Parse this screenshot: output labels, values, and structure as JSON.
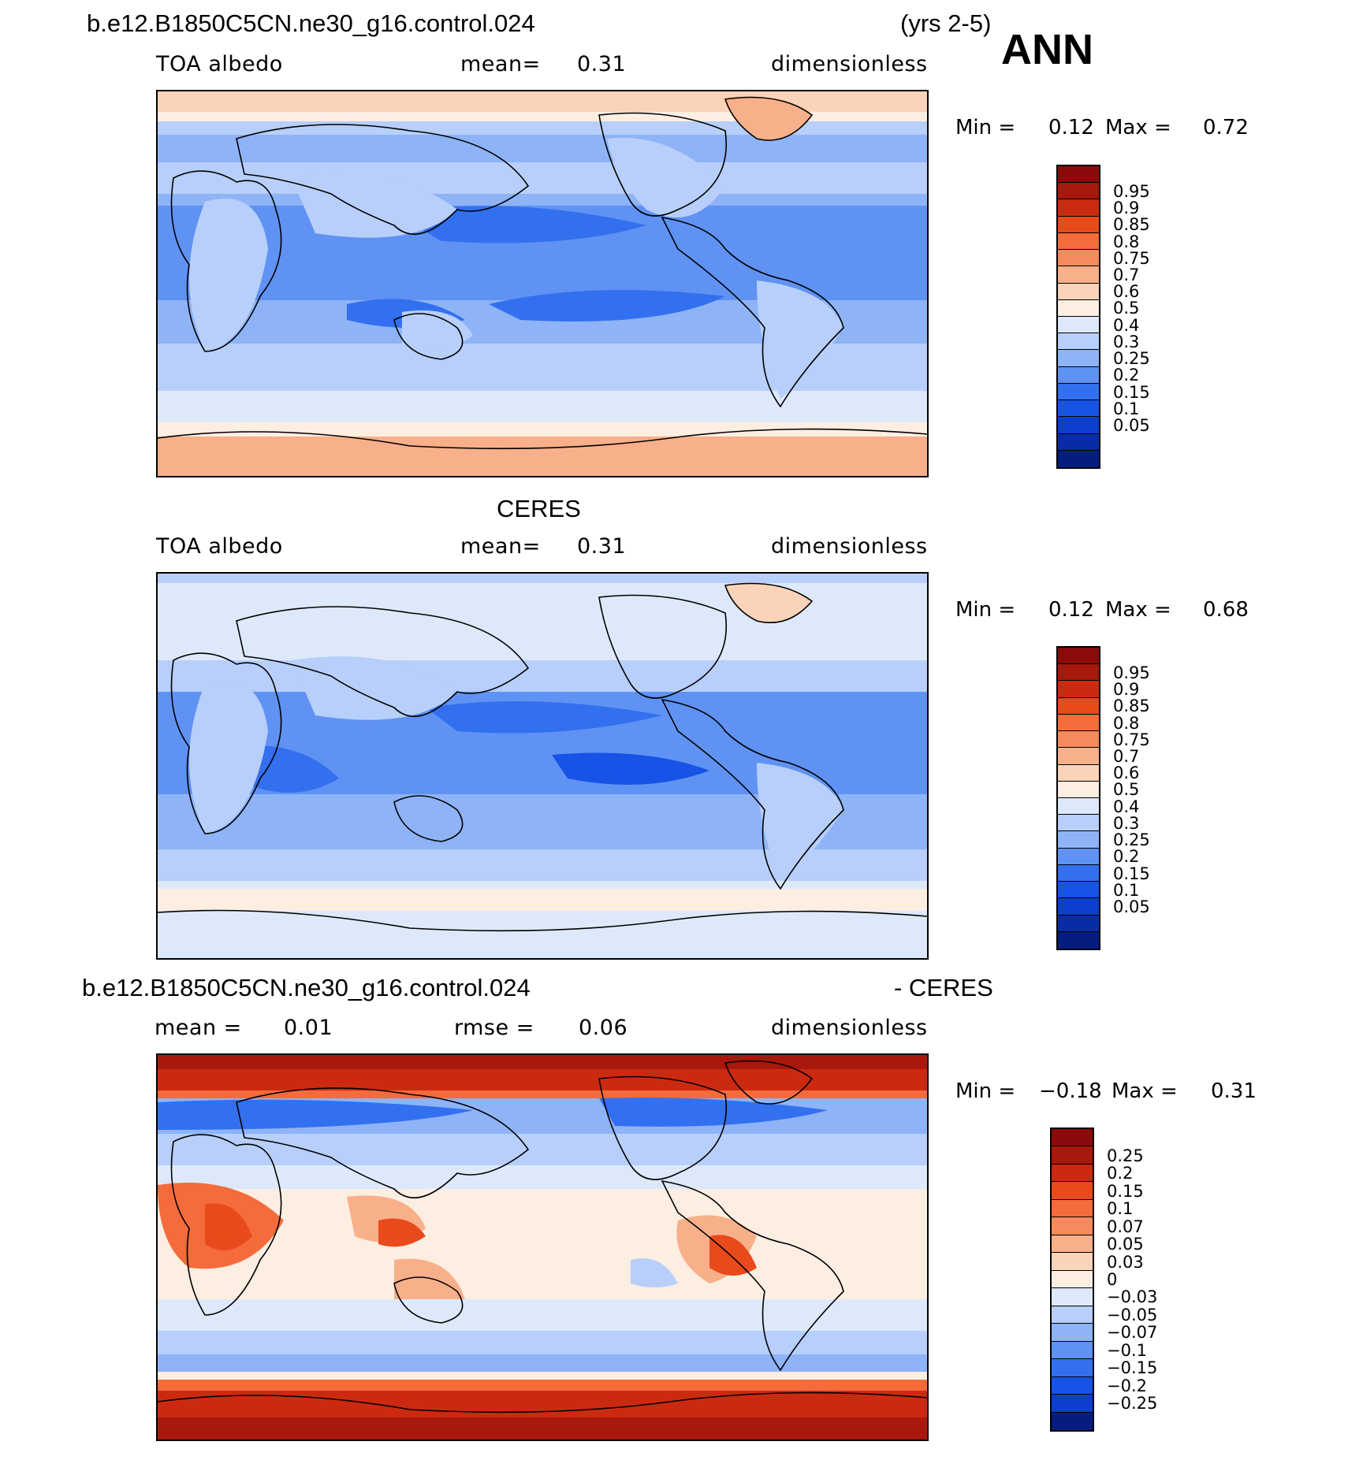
{
  "header": {
    "case_name": "b.e12.B1850C5CN.ne30_g16.control.024",
    "years": "(yrs 2-5)",
    "season": "ANN"
  },
  "panels": [
    {
      "id": "model",
      "title": "",
      "variable": "TOA albedo",
      "stat1_label": "mean=",
      "stat1_value": "0.31",
      "stat2_label": "",
      "stat2_value": "",
      "units": "dimensionless",
      "min_label": "Min =",
      "min_value": "0.12",
      "max_label": "Max =",
      "max_value": "0.72"
    },
    {
      "id": "obs",
      "title": "CERES",
      "variable": "TOA albedo",
      "stat1_label": "mean=",
      "stat1_value": "0.31",
      "stat2_label": "",
      "stat2_value": "",
      "units": "dimensionless",
      "min_label": "Min =",
      "min_value": "0.12",
      "max_label": "Max =",
      "max_value": "0.68"
    },
    {
      "id": "diff",
      "title": "b.e12.B1850C5CN.ne30_g16.control.024",
      "title_right": "- CERES",
      "variable": "",
      "stat1_label": "mean =",
      "stat1_value": "0.01",
      "stat2_label": "rmse =",
      "stat2_value": "0.06",
      "units": "dimensionless",
      "min_label": "Min =",
      "min_value": "−0.18",
      "max_label": "Max =",
      "max_value": "0.31"
    }
  ],
  "legends": {
    "abs": {
      "labels": [
        "0.95",
        "0.9",
        "0.85",
        "0.8",
        "0.75",
        "0.7",
        "0.6",
        "0.5",
        "0.4",
        "0.3",
        "0.25",
        "0.2",
        "0.15",
        "0.1",
        "0.05"
      ],
      "colors": [
        "#8b0a0a",
        "#a8180c",
        "#cc2a10",
        "#e84a1c",
        "#f56b3c",
        "#f78a5c",
        "#f8b08a",
        "#fad3b8",
        "#fdeee2",
        "#dde9fb",
        "#b7cffa",
        "#8eb3f7",
        "#5f92f3",
        "#3370ef",
        "#1653e6",
        "#0d3fcf",
        "#0a2ba8",
        "#061d80"
      ]
    },
    "diff": {
      "labels": [
        "0.25",
        "0.2",
        "0.15",
        "0.1",
        "0.07",
        "0.05",
        "0.03",
        "0",
        "−0.03",
        "−0.05",
        "−0.07",
        "−0.1",
        "−0.15",
        "−0.2",
        "−0.25"
      ],
      "colors": [
        "#8b0a0a",
        "#a8180c",
        "#cc2a10",
        "#e84a1c",
        "#f56b3c",
        "#f78a5c",
        "#f8b08a",
        "#fad3b8",
        "#fdeee2",
        "#dde9fb",
        "#b7cffa",
        "#8eb3f7",
        "#5f92f3",
        "#3370ef",
        "#1653e6",
        "#0d3fcf",
        "#061d80"
      ]
    }
  }
}
